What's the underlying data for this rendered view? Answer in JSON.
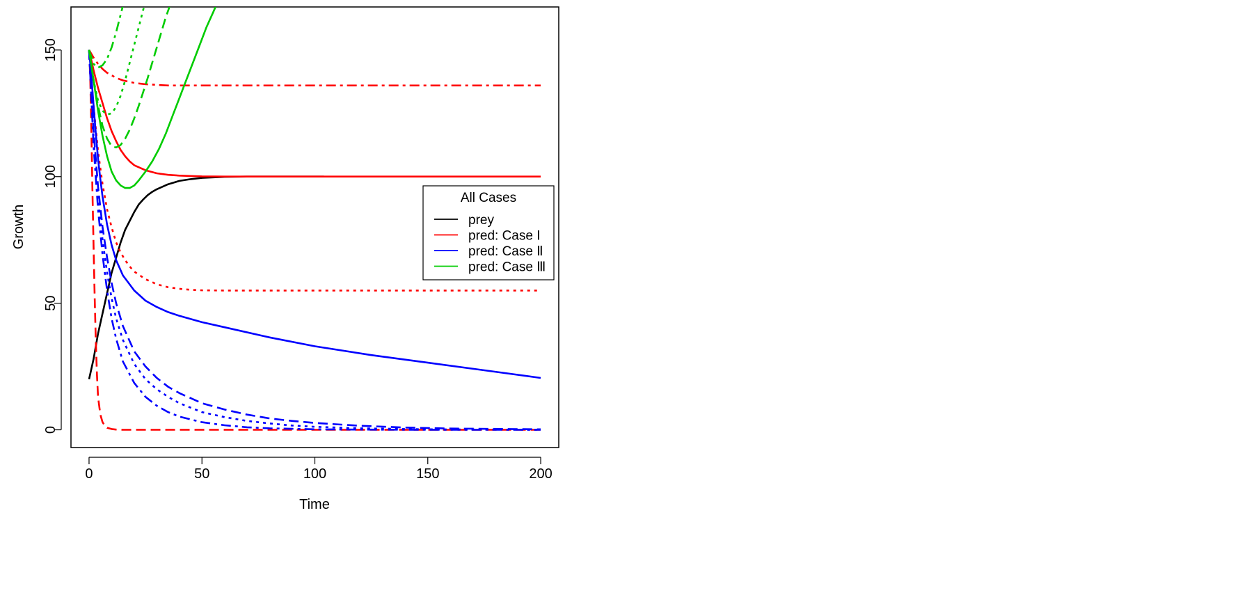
{
  "chart_data": {
    "type": "line",
    "title": "",
    "xlabel": "Time",
    "ylabel": "Growth",
    "xlim": [
      -8,
      208
    ],
    "ylim": [
      -7,
      167
    ],
    "xticks": [
      0,
      50,
      100,
      150,
      200
    ],
    "yticks": [
      0,
      50,
      100,
      150
    ],
    "legend": {
      "title": "All Cases",
      "placement": "right",
      "entries": [
        {
          "label": "prey",
          "color": "#000000"
        },
        {
          "label": "pred: Case I",
          "color": "#ff0000"
        },
        {
          "label": "pred: Case Ⅱ",
          "color": "#0000ff"
        },
        {
          "label": "pred: Case Ⅲ",
          "color": "#00cc00"
        }
      ]
    },
    "series": [
      {
        "color": "#000000",
        "dash": "solid",
        "x": [
          0,
          2,
          4,
          6,
          8,
          10,
          12,
          14,
          16,
          18,
          20,
          22,
          24,
          26,
          28,
          30,
          35,
          40,
          45,
          50,
          55,
          60,
          70,
          80,
          90,
          100,
          104
        ],
        "y": [
          20,
          28,
          38,
          46,
          54,
          62,
          68,
          74,
          79,
          82.5,
          86,
          89,
          91,
          92.7,
          94,
          95,
          97,
          98.3,
          99,
          99.5,
          99.7,
          99.9,
          100,
          100,
          100,
          100,
          100
        ]
      },
      {
        "color": "#ff0000",
        "dash": "solid",
        "x": [
          0,
          2,
          4,
          6,
          8,
          10,
          12,
          14,
          16,
          18,
          20,
          25,
          30,
          35,
          40,
          50,
          60,
          80,
          100,
          150,
          200
        ],
        "y": [
          150,
          142,
          135,
          129,
          123,
          118,
          114,
          110.5,
          108,
          106,
          104.5,
          102.5,
          101.3,
          100.7,
          100.4,
          100.1,
          100,
          100,
          100,
          100,
          100
        ]
      },
      {
        "color": "#ff0000",
        "dash": "dot",
        "x": [
          0,
          2,
          4,
          6,
          8,
          10,
          12,
          14,
          16,
          18,
          20,
          25,
          30,
          35,
          40,
          45,
          50,
          60,
          80,
          100,
          150,
          200
        ],
        "y": [
          150,
          128,
          110,
          97,
          87,
          80,
          74,
          70,
          67,
          64.5,
          62.5,
          59.5,
          57.5,
          56.3,
          55.7,
          55.3,
          55.1,
          55,
          55,
          55,
          55,
          55
        ]
      },
      {
        "color": "#ff0000",
        "dash": "dash",
        "x": [
          0,
          0.5,
          1,
          1.5,
          2,
          2.5,
          3,
          3.5,
          4,
          5,
          6,
          7,
          8,
          10,
          12,
          15,
          20,
          50,
          100,
          150,
          200
        ],
        "y": [
          150,
          140,
          120,
          95,
          72,
          52,
          35,
          22,
          13,
          6,
          3,
          1.6,
          0.8,
          0.3,
          0.1,
          0,
          0,
          0,
          0,
          0,
          0
        ]
      },
      {
        "color": "#ff0000",
        "dash": "dashdot",
        "x": [
          0,
          2,
          4,
          6,
          8,
          10,
          12,
          15,
          20,
          25,
          30,
          35,
          40,
          50,
          60,
          80,
          100,
          150,
          200
        ],
        "y": [
          150,
          147,
          144.5,
          142.5,
          141,
          140,
          139,
          138,
          137,
          136.5,
          136.2,
          136,
          136,
          136,
          136,
          136,
          136,
          136,
          136
        ]
      },
      {
        "color": "#0000ff",
        "dash": "solid",
        "x": [
          0,
          1,
          2,
          3,
          4,
          5,
          6,
          8,
          10,
          12,
          15,
          20,
          25,
          30,
          35,
          40,
          50,
          60,
          80,
          100,
          125,
          150,
          175,
          200
        ],
        "y": [
          150,
          140,
          128,
          117,
          107,
          99,
          92,
          81,
          73,
          67,
          61,
          55,
          51,
          48.5,
          46.5,
          45,
          42.5,
          40.5,
          36.5,
          33,
          29.5,
          26.5,
          23.5,
          20.5
        ]
      },
      {
        "color": "#0000ff",
        "dash": "dash",
        "x": [
          0,
          2,
          4,
          6,
          8,
          10,
          12,
          15,
          20,
          25,
          30,
          35,
          40,
          50,
          60,
          70,
          80,
          90,
          100,
          120,
          140,
          160,
          200
        ],
        "y": [
          150,
          118,
          96,
          80,
          68,
          58,
          50,
          41,
          31,
          25,
          20.5,
          17,
          14.5,
          10.5,
          8,
          6,
          4.5,
          3.5,
          2.7,
          1.6,
          0.9,
          0.5,
          0.2
        ]
      },
      {
        "color": "#0000ff",
        "dash": "dot",
        "x": [
          0,
          2,
          4,
          6,
          8,
          10,
          12,
          15,
          20,
          25,
          30,
          35,
          40,
          50,
          60,
          70,
          80,
          90,
          100,
          120,
          150,
          200
        ],
        "y": [
          150,
          115,
          92,
          75,
          62,
          52,
          44,
          35.5,
          26,
          20,
          16,
          13,
          10.5,
          7,
          5,
          3.5,
          2.5,
          1.7,
          1.2,
          0.6,
          0.2,
          0
        ]
      },
      {
        "color": "#0000ff",
        "dash": "dashdot",
        "x": [
          0,
          2,
          4,
          6,
          8,
          10,
          12,
          15,
          20,
          25,
          30,
          35,
          40,
          50,
          60,
          70,
          80,
          90,
          100,
          120,
          150,
          200
        ],
        "y": [
          150,
          112,
          87,
          69,
          55,
          44,
          36,
          27,
          18.5,
          13,
          9.5,
          7,
          5.2,
          3,
          1.8,
          1,
          0.6,
          0.4,
          0.2,
          0.1,
          0,
          0
        ]
      },
      {
        "color": "#00cc00",
        "dash": "solid",
        "x": [
          0,
          2,
          4,
          6,
          8,
          10,
          12,
          14,
          16,
          18,
          20,
          22,
          25,
          28,
          31,
          34,
          37,
          40,
          43,
          46,
          49,
          52,
          55,
          56
        ],
        "y": [
          150,
          138,
          126,
          116,
          108,
          102,
          98.5,
          96.5,
          95.5,
          95.5,
          96.5,
          98.5,
          102,
          106,
          111,
          117,
          124,
          131,
          138,
          145,
          152,
          159,
          165,
          167
        ]
      },
      {
        "color": "#00cc00",
        "dash": "dash",
        "x": [
          0,
          2,
          4,
          6,
          8,
          10,
          12,
          14,
          16,
          18,
          20,
          22,
          24,
          26,
          28,
          30,
          32,
          34,
          36,
          37
        ],
        "y": [
          150,
          138,
          128,
          120,
          115,
          112,
          111.5,
          112.5,
          115,
          118.5,
          123,
          128,
          133.5,
          139,
          145,
          151,
          157,
          163,
          168,
          170
        ]
      },
      {
        "color": "#00cc00",
        "dash": "dot",
        "x": [
          0,
          2,
          4,
          6,
          8,
          10,
          12,
          14,
          16,
          18,
          20,
          22,
          24,
          26
        ],
        "y": [
          150,
          138,
          130,
          126,
          124.5,
          125,
          127.5,
          132,
          138,
          145,
          152,
          159,
          166,
          172
        ]
      },
      {
        "color": "#00cc00",
        "dash": "dashdot",
        "x": [
          0,
          2,
          4,
          6,
          8,
          10,
          12,
          14,
          16
        ],
        "y": [
          150,
          144.5,
          143,
          144,
          146.5,
          151,
          157,
          164,
          171
        ]
      }
    ]
  }
}
